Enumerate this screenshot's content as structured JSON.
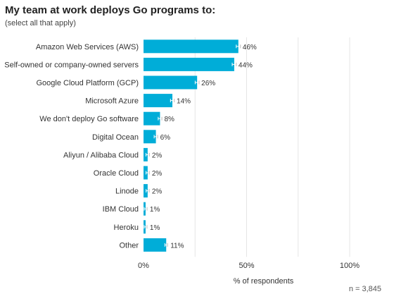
{
  "title": "My team at work deploys Go programs to:",
  "subtitle": "(select all that apply)",
  "n_label": "n =  3,845",
  "colors": {
    "bar": "#00ADD8",
    "grid": "#e5e5e5",
    "error_bar": "#ffffff"
  },
  "chart_data": {
    "type": "bar",
    "orientation": "horizontal",
    "categories": [
      "Amazon Web Services (AWS)",
      "Self-owned or company-owned servers",
      "Google Cloud Platform (GCP)",
      "Microsoft Azure",
      "We don't deploy Go software",
      "Digital Ocean",
      "Aliyun / Alibaba Cloud",
      "Oracle Cloud",
      "Linode",
      "IBM Cloud",
      "Heroku",
      "Other"
    ],
    "values": [
      46,
      44,
      26,
      14,
      8,
      6,
      2,
      2,
      2,
      1,
      1,
      11
    ],
    "value_labels": [
      "46%",
      "44%",
      "26%",
      "14%",
      "8%",
      "6%",
      "2%",
      "2%",
      "2%",
      "1%",
      "1%",
      "11%"
    ],
    "xlabel": "% of respondents",
    "xlim": [
      0,
      100
    ],
    "xticks": [
      0,
      50,
      100
    ],
    "xtick_labels": [
      "0%",
      "50%",
      "100%"
    ],
    "gridlines": [
      25,
      50,
      75,
      100
    ],
    "error_bars": true,
    "legend": "none"
  }
}
